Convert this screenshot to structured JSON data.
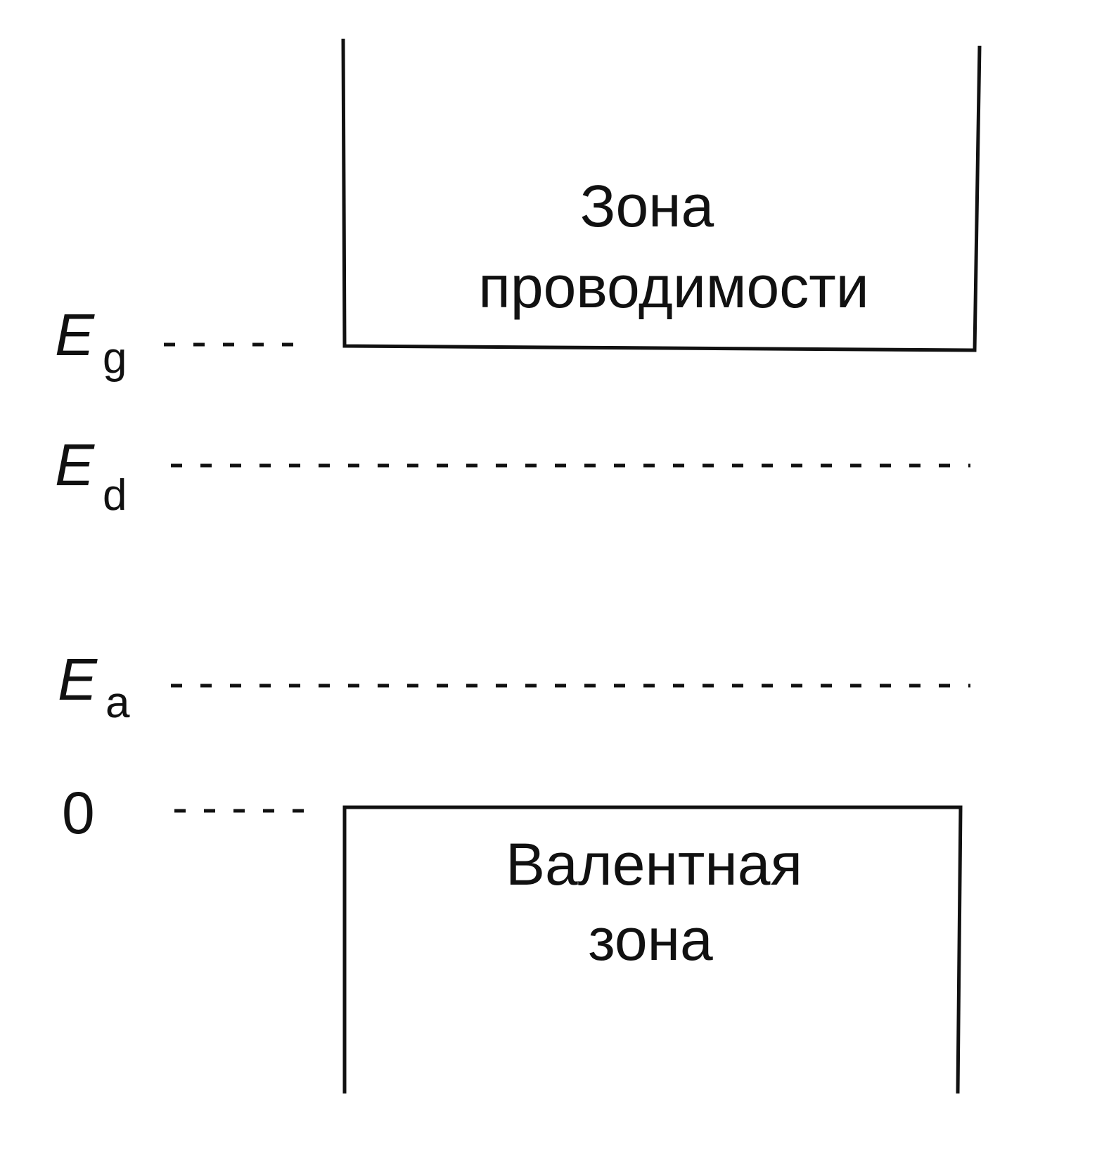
{
  "conduction_band": {
    "label_line1": "Зона",
    "label_line2": "проводимости"
  },
  "valence_band": {
    "label_line1": "Валентная",
    "label_line2": "зона"
  },
  "levels": {
    "eg": {
      "symbol": "E",
      "subscript": "g"
    },
    "ed": {
      "symbol": "E",
      "subscript": "d"
    },
    "ea": {
      "symbol": "E",
      "subscript": "a"
    },
    "zero": {
      "label": "0"
    }
  }
}
